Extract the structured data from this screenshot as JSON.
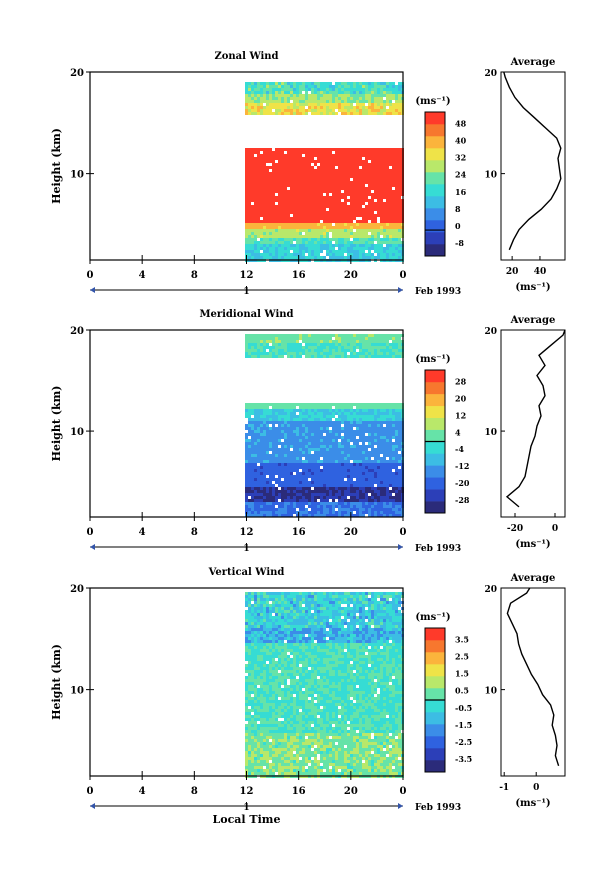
{
  "chart_data": [
    {
      "type": "heatmap",
      "title": "Zonal Wind",
      "ylabel": "Height (km)",
      "yticks": [
        "20",
        "10"
      ],
      "xticks": [
        "0",
        "4",
        "8",
        "12",
        "16",
        "20",
        "0"
      ],
      "date_marker": "1",
      "date_label": "Feb 1993",
      "data_start_hour": 12,
      "colorbar": {
        "unit": "(ms⁻¹)",
        "labels": [
          "48",
          "40",
          "32",
          "24",
          "16",
          "8",
          "0",
          "-8"
        ],
        "range": [
          -12,
          52
        ]
      },
      "pattern": "zonal",
      "average": {
        "title": "Average",
        "xlabel": "(ms⁻¹)",
        "xticks": [
          "20",
          "40"
        ],
        "yticks": [
          "20",
          "10"
        ],
        "xlim": [
          12,
          58
        ],
        "profile": [
          [
            18,
            2.5
          ],
          [
            21,
            3.5
          ],
          [
            25,
            4.5
          ],
          [
            32,
            5.5
          ],
          [
            41,
            6.5
          ],
          [
            48,
            7.5
          ],
          [
            52,
            8.5
          ],
          [
            55,
            9.5
          ],
          [
            54,
            10.5
          ],
          [
            53,
            11.5
          ],
          [
            55,
            12.5
          ],
          [
            52,
            13.5
          ],
          [
            44,
            14.5
          ],
          [
            36,
            15.5
          ],
          [
            28,
            16.5
          ],
          [
            22,
            17.5
          ],
          [
            18,
            18.5
          ],
          [
            15,
            19.5
          ],
          [
            14,
            20
          ]
        ]
      }
    },
    {
      "type": "heatmap",
      "title": "Meridional Wind",
      "ylabel": "Height (km)",
      "yticks": [
        "20",
        "10"
      ],
      "xticks": [
        "0",
        "4",
        "8",
        "12",
        "16",
        "20",
        "0"
      ],
      "date_marker": "1",
      "date_label": "Feb 1993",
      "data_start_hour": 12,
      "colorbar": {
        "unit": "(ms⁻¹)",
        "labels": [
          "28",
          "20",
          "12",
          "4",
          "-4",
          "-12",
          "-20",
          "-28"
        ],
        "range": [
          -32,
          32
        ]
      },
      "pattern": "meridional",
      "average": {
        "title": "Average",
        "xlabel": "(ms⁻¹)",
        "xticks": [
          "-20",
          "0"
        ],
        "yticks": [
          "20",
          "10"
        ],
        "xlim": [
          -27,
          5
        ],
        "profile": [
          [
            -18,
            2.5
          ],
          [
            -24,
            3.5
          ],
          [
            -18,
            4.5
          ],
          [
            -15,
            5.5
          ],
          [
            -14,
            6.5
          ],
          [
            -13,
            7.5
          ],
          [
            -12,
            8.5
          ],
          [
            -10,
            9.5
          ],
          [
            -9,
            10.5
          ],
          [
            -7,
            11.5
          ],
          [
            -8,
            12.5
          ],
          [
            -5,
            13.5
          ],
          [
            -6,
            14.5
          ],
          [
            -9,
            15.5
          ],
          [
            -5,
            16.5
          ],
          [
            -8,
            17.5
          ],
          [
            -2,
            18.5
          ],
          [
            4,
            19.5
          ],
          [
            5,
            20
          ]
        ]
      }
    },
    {
      "type": "heatmap",
      "title": "Vertical Wind",
      "ylabel": "Height (km)",
      "yticks": [
        "20",
        "10"
      ],
      "xticks": [
        "0",
        "4",
        "8",
        "12",
        "16",
        "20",
        "0"
      ],
      "date_marker": "1",
      "date_label": "Feb 1993",
      "xlabel": "Local Time",
      "data_start_hour": 12,
      "colorbar": {
        "unit": "(ms⁻¹)",
        "labels": [
          "3.5",
          "2.5",
          "1.5",
          "0.5",
          "-0.5",
          "-1.5",
          "-2.5",
          "-3.5"
        ],
        "range": [
          -4,
          4
        ]
      },
      "pattern": "vertical",
      "average": {
        "title": "Average",
        "xlabel": "(ms⁻¹)",
        "xticks": [
          "-1",
          "0"
        ],
        "yticks": [
          "20",
          "10"
        ],
        "xlim": [
          -1.1,
          0.9
        ],
        "profile": [
          [
            0.7,
            2.5
          ],
          [
            0.6,
            3.5
          ],
          [
            0.65,
            4.5
          ],
          [
            0.6,
            5.5
          ],
          [
            0.5,
            6.5
          ],
          [
            0.55,
            7.5
          ],
          [
            0.45,
            8.5
          ],
          [
            0.2,
            9.5
          ],
          [
            0.05,
            10.5
          ],
          [
            -0.15,
            11.5
          ],
          [
            -0.3,
            12.5
          ],
          [
            -0.45,
            13.5
          ],
          [
            -0.55,
            14.5
          ],
          [
            -0.6,
            15.5
          ],
          [
            -0.75,
            16.5
          ],
          [
            -0.9,
            17.5
          ],
          [
            -0.8,
            18.5
          ],
          [
            -0.3,
            19.5
          ],
          [
            -0.2,
            20
          ]
        ]
      }
    }
  ],
  "colors": {
    "scale": [
      "#2b2b7a",
      "#2c3fb8",
      "#2f62e0",
      "#3b8de8",
      "#3cbde4",
      "#36dcd4",
      "#66e3a8",
      "#b9e86a",
      "#efe348",
      "#fbb43c",
      "#f7772e",
      "#ff3a2a"
    ]
  }
}
